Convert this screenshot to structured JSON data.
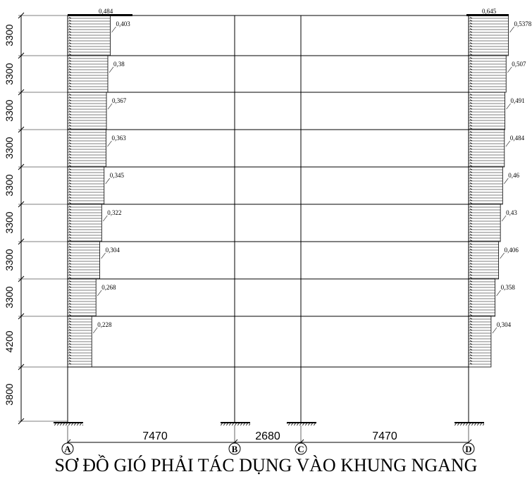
{
  "title": "SƠ ĐỒ GIÓ PHẢI TÁC DỤNG VÀO KHUNG NGANG",
  "storey_heights": [
    "3300",
    "3300",
    "3300",
    "3300",
    "3300",
    "3300",
    "3300",
    "3300",
    "4200",
    "3800"
  ],
  "spans": [
    "7470",
    "2680",
    "7470"
  ],
  "axes": [
    "A",
    "B",
    "C",
    "D"
  ],
  "left_loads": {
    "top": "0,484",
    "floors": [
      "0,403",
      "0,38",
      "0,367",
      "0,363",
      "0,345",
      "0,322",
      "0,304",
      "0,268",
      "0,228"
    ]
  },
  "right_loads": {
    "top": "0,645",
    "floors": [
      "0,5378",
      "0,507",
      "0,491",
      "0,484",
      "0,46",
      "0,43",
      "0,406",
      "0,358",
      "0,304"
    ]
  }
}
